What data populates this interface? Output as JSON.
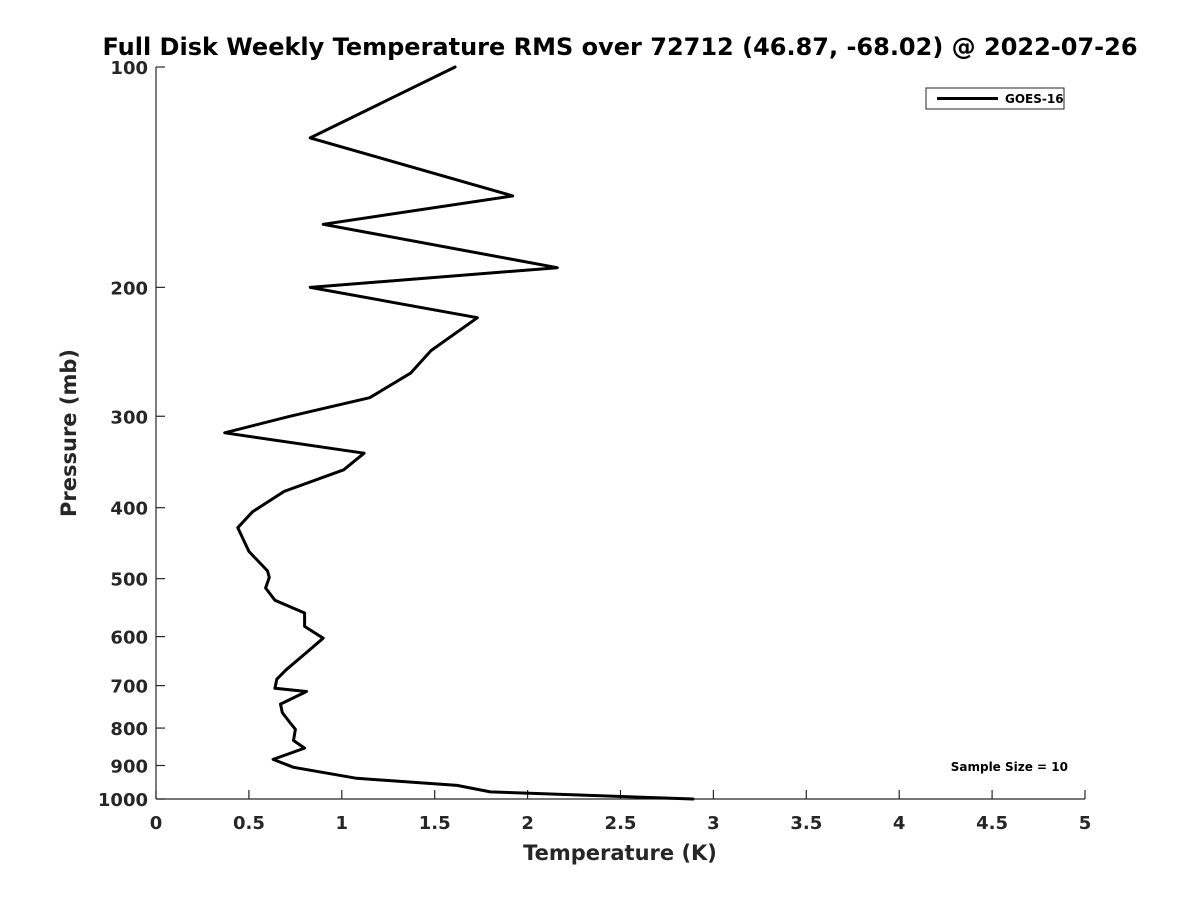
{
  "chart_data": {
    "type": "line",
    "title": "Full Disk Weekly Temperature RMS over 72712 (46.87, -68.02) @ 2022-07-26",
    "xlabel": "Temperature (K)",
    "ylabel": "Pressure (mb)",
    "xlim": [
      0,
      5
    ],
    "ylim": [
      100,
      1000
    ],
    "y_scale": "log",
    "y_reversed": true,
    "xticks": [
      0,
      0.5,
      1,
      1.5,
      2,
      2.5,
      3,
      3.5,
      4,
      4.5,
      5
    ],
    "xtick_labels": [
      "0",
      "0.5",
      "1",
      "1.5",
      "2",
      "2.5",
      "3",
      "3.5",
      "4",
      "4.5",
      "5"
    ],
    "yticks": [
      100,
      200,
      300,
      400,
      500,
      600,
      700,
      800,
      900,
      1000
    ],
    "ytick_labels": [
      "100",
      "200",
      "300",
      "400",
      "500",
      "600",
      "700",
      "800",
      "900",
      "1000"
    ],
    "grid": false,
    "legend_position": "top-right",
    "annotation": "Sample Size = 10",
    "series": [
      {
        "name": "GOES-16",
        "color": "#000000",
        "x": [
          1.61,
          0.83,
          1.92,
          0.9,
          2.16,
          0.83,
          1.73,
          1.48,
          1.37,
          1.15,
          0.72,
          0.37,
          1.12,
          1.01,
          0.69,
          0.52,
          0.44,
          0.5,
          0.6,
          0.61,
          0.59,
          0.64,
          0.8,
          0.8,
          0.9,
          0.8,
          0.7,
          0.65,
          0.64,
          0.81,
          0.67,
          0.68,
          0.72,
          0.75,
          0.74,
          0.8,
          0.63,
          0.74,
          1.08,
          1.62,
          1.8,
          2.89
        ],
        "y": [
          100,
          125,
          150,
          164,
          188,
          200,
          220,
          244,
          262,
          283,
          300,
          316,
          337,
          355,
          380,
          405,
          426,
          459,
          488,
          498,
          515,
          535,
          557,
          581,
          603,
          634,
          666,
          686,
          706,
          713,
          742,
          762,
          786,
          803,
          832,
          852,
          883,
          905,
          937,
          958,
          978,
          1000
        ]
      }
    ]
  }
}
